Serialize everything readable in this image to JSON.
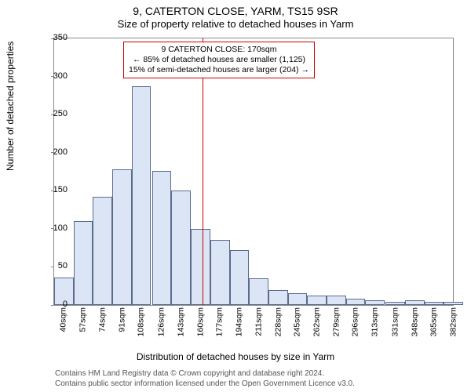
{
  "title_main": "9, CATERTON CLOSE, YARM, TS15 9SR",
  "title_sub": "Size of property relative to detached houses in Yarm",
  "ylabel": "Number of detached properties",
  "xlabel": "Distribution of detached houses by size in Yarm",
  "footer_line1": "Contains HM Land Registry data © Crown copyright and database right 2024.",
  "footer_line2": "Contains public sector information licensed under the Open Government Licence v3.0.",
  "callout_line1": "9 CATERTON CLOSE: 170sqm",
  "callout_line2": "← 85% of detached houses are smaller (1,125)",
  "callout_line3": "15% of semi-detached houses are larger (204) →",
  "chart": {
    "type": "histogram",
    "background_color": "#ffffff",
    "bar_fill": "#dbe5f6",
    "bar_border": "#5b6b8c",
    "ref_line_color": "#cc0000",
    "ref_value_sqm": 170,
    "ylim": [
      0,
      350
    ],
    "ytick_step": 50,
    "yticks": [
      0,
      50,
      100,
      150,
      200,
      250,
      300,
      350
    ],
    "x_tick_labels": [
      "40sqm",
      "57sqm",
      "74sqm",
      "91sqm",
      "108sqm",
      "126sqm",
      "143sqm",
      "160sqm",
      "177sqm",
      "194sqm",
      "211sqm",
      "228sqm",
      "245sqm",
      "262sqm",
      "279sqm",
      "296sqm",
      "313sqm",
      "331sqm",
      "348sqm",
      "365sqm",
      "382sqm"
    ],
    "x_min": 40,
    "x_max": 390,
    "bar_starts": [
      40,
      57,
      74,
      91,
      108,
      126,
      143,
      160,
      177,
      194,
      211,
      228,
      245,
      262,
      279,
      296,
      313,
      331,
      348,
      365,
      382
    ],
    "bar_width_sqm": 17,
    "values": [
      36,
      110,
      142,
      178,
      287,
      176,
      150,
      100,
      85,
      72,
      35,
      20,
      15,
      12,
      12,
      8,
      6,
      4,
      6,
      4,
      4
    ],
    "title_fontsize": 14,
    "label_fontsize": 12,
    "tick_fontsize": 11
  }
}
